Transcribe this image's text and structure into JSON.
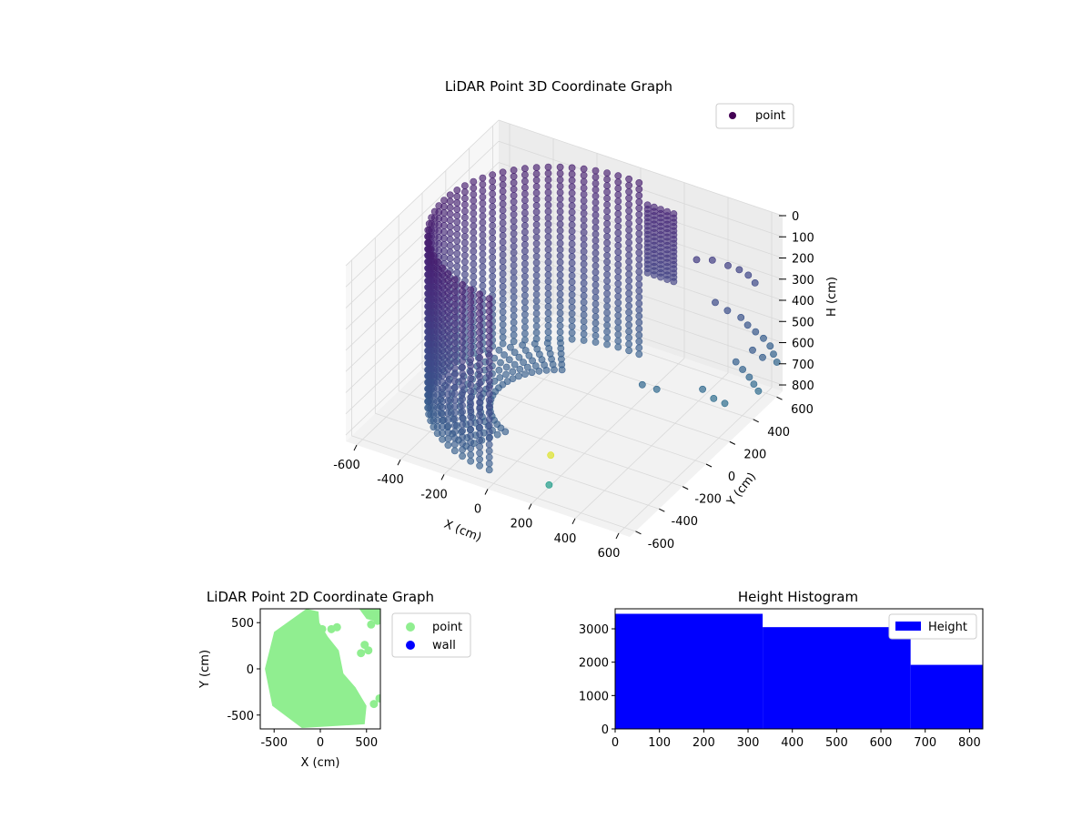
{
  "chart_data": [
    {
      "type": "scatter3d",
      "title": "LiDAR Point 3D Coordinate Graph",
      "xlabel": "X (cm)",
      "ylabel": "Y (cm)",
      "zlabel": "H (cm)",
      "x_ticks": [
        -600,
        -400,
        -200,
        0,
        200,
        400,
        600
      ],
      "y_ticks": [
        600,
        400,
        200,
        0,
        -200,
        -400,
        -600
      ],
      "z_ticks": [
        0,
        100,
        200,
        300,
        400,
        500,
        600,
        700,
        800
      ],
      "xlim": [
        -650,
        650
      ],
      "ylim": [
        -650,
        650
      ],
      "zlim": [
        0,
        830
      ],
      "z_inverted": true,
      "grid": true,
      "legend": {
        "placement": "top-right",
        "entries": [
          {
            "label": "point",
            "color": "#440154"
          }
        ]
      },
      "series": [
        {
          "name": "point",
          "colormap": "viridis",
          "description_of_shape": "half-cylinder wall around x=-600..0 and y=-550..600, heights 0..830 with sparse points on east side",
          "arc": {
            "radius": 550,
            "center": [
              0,
              0
            ],
            "angle_start_deg": 85,
            "angle_end_deg": 265,
            "h_range": [
              0,
              830
            ]
          },
          "sparse_points": [
            {
              "x": 380,
              "y": 420,
              "h": 180
            },
            {
              "x": 420,
              "y": 480,
              "h": 200
            },
            {
              "x": 470,
              "y": 520,
              "h": 230
            },
            {
              "x": 500,
              "y": 560,
              "h": 260
            },
            {
              "x": 520,
              "y": 600,
              "h": 300
            },
            {
              "x": 540,
              "y": 620,
              "h": 340
            },
            {
              "x": 460,
              "y": 430,
              "h": 360
            },
            {
              "x": 500,
              "y": 460,
              "h": 400
            },
            {
              "x": 540,
              "y": 500,
              "h": 440
            },
            {
              "x": 560,
              "y": 520,
              "h": 480
            },
            {
              "x": 580,
              "y": 550,
              "h": 520
            },
            {
              "x": 600,
              "y": 580,
              "h": 560
            },
            {
              "x": 620,
              "y": 600,
              "h": 600
            },
            {
              "x": 630,
              "y": 610,
              "h": 640
            },
            {
              "x": 640,
              "y": 620,
              "h": 680
            },
            {
              "x": 560,
              "y": 420,
              "h": 600
            },
            {
              "x": 580,
              "y": 440,
              "h": 640
            },
            {
              "x": 600,
              "y": 460,
              "h": 680
            },
            {
              "x": 610,
              "y": 480,
              "h": 720
            },
            {
              "x": 620,
              "y": 500,
              "h": 760
            },
            {
              "x": 440,
              "y": 360,
              "h": 740
            },
            {
              "x": 480,
              "y": 380,
              "h": 780
            },
            {
              "x": 520,
              "y": 400,
              "h": 800
            },
            {
              "x": 250,
              "y": 200,
              "h": 700
            },
            {
              "x": 300,
              "y": 230,
              "h": 720
            },
            {
              "x": 620,
              "y": 450,
              "h": 540
            },
            {
              "x": 650,
              "y": 480,
              "h": 580
            },
            {
              "x": 100,
              "y": -300,
              "h": 820
            },
            {
              "x": 200,
              "y": -500,
              "h": 820
            }
          ]
        }
      ]
    },
    {
      "type": "scatter",
      "title": "LiDAR Point 2D Coordinate Graph",
      "xlabel": "X (cm)",
      "ylabel": "Y (cm)",
      "x_ticks": [
        -500,
        0,
        500
      ],
      "y_ticks": [
        500,
        0,
        -500
      ],
      "xlim": [
        -650,
        650
      ],
      "ylim": [
        -650,
        650
      ],
      "legend": {
        "placement": "right-outside",
        "entries": [
          {
            "label": "point",
            "color": "#90ee90"
          },
          {
            "label": "wall",
            "color": "#0000ff"
          }
        ]
      },
      "series": [
        {
          "name": "point",
          "color": "#90ee90",
          "description_of_shape": "filled region roughly x -600..500, y -600..650 with an indent near x 0..300 y 200..600"
        },
        {
          "name": "wall",
          "color": "#0000ff",
          "values": []
        }
      ]
    },
    {
      "type": "bar",
      "title": "Height Histogram",
      "xlabel": "",
      "ylabel": "",
      "x_ticks": [
        0,
        100,
        200,
        300,
        400,
        500,
        600,
        700,
        800
      ],
      "y_ticks": [
        0,
        1000,
        2000,
        3000
      ],
      "xlim": [
        0,
        830
      ],
      "ylim": [
        0,
        3600
      ],
      "legend": {
        "placement": "top-right",
        "entries": [
          {
            "label": "Height",
            "color": "#0000ff"
          }
        ]
      },
      "series": [
        {
          "name": "Height",
          "color": "#0000ff",
          "bins": [
            {
              "x0": 0,
              "x1": 333,
              "count": 3450
            },
            {
              "x0": 333,
              "x1": 667,
              "count": 3050
            },
            {
              "x0": 667,
              "x1": 830,
              "count": 1920
            }
          ]
        }
      ]
    }
  ]
}
